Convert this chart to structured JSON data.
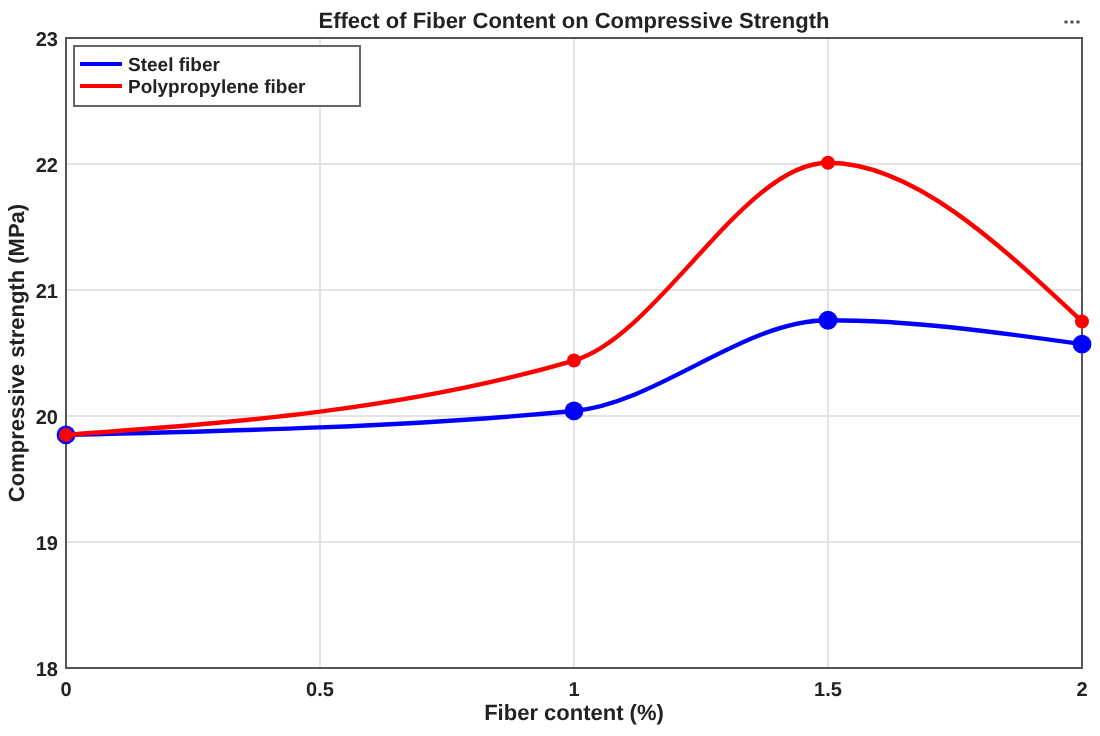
{
  "chart_data": {
    "type": "line",
    "title": "Effect of Fiber Content on Compressive Strength",
    "xlabel": "Fiber content (%)",
    "ylabel": "Compressive strength (MPa)",
    "x": [
      0,
      1,
      1.5,
      2
    ],
    "series": [
      {
        "name": "Steel fiber",
        "color": "#0000ff",
        "values": [
          19.85,
          20.04,
          20.76,
          20.57
        ]
      },
      {
        "name": "Polypropylene fiber",
        "color": "#ff0000",
        "values": [
          19.85,
          20.44,
          22.01,
          20.75
        ]
      }
    ],
    "xlim": [
      0,
      2
    ],
    "xticks": [
      0,
      0.5,
      1,
      1.5,
      2
    ],
    "ylim": [
      18,
      23
    ],
    "yticks": [
      18,
      19,
      20,
      21,
      22,
      23
    ],
    "grid": true,
    "legend": "top left",
    "marker": "circle",
    "line_style": "solid"
  }
}
